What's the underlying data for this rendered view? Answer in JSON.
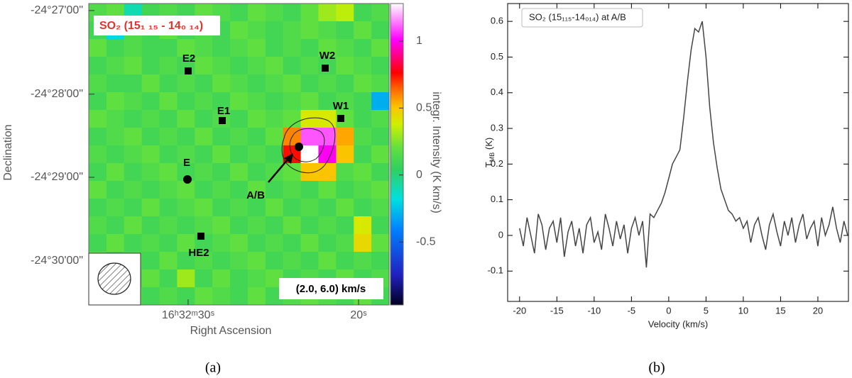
{
  "chart_data": [
    {
      "type": "heatmap",
      "title": "SO₂ (15₁ ₁₅ - 14₀ ₁₄)",
      "annotation": "(2.0, 6.0) km/s",
      "xlabel": "Right Ascension",
      "ylabel": "Declination",
      "xlim": [
        35.83,
        18.21
      ],
      "xticks": [
        {
          "value": 30,
          "label": "16ʰ32ᵐ30ˢ"
        },
        {
          "value": 20,
          "label": "20ˢ"
        }
      ],
      "ylim": [
        -24.4486,
        -24.5088
      ],
      "yticks": [
        {
          "value": -24.45,
          "label": "-24°27'00\""
        },
        {
          "value": -24.4667,
          "label": "-24°28'00\""
        },
        {
          "value": -24.4833,
          "label": "-24°29'00\""
        },
        {
          "value": -24.5,
          "label": "-24°30'00\""
        }
      ],
      "clim": [
        -0.97,
        1.28
      ],
      "cticks": [
        -0.5,
        0,
        0.5,
        1
      ],
      "colorbar_label": "integr. Intensity (K km/s)",
      "sources": [
        "E2",
        "W2",
        "E1",
        "W1",
        "E",
        "A/B",
        "HE2"
      ],
      "caption": "(a)",
      "values": [
        [
          0.15,
          0.2,
          -0.1,
          0.1,
          0.15,
          0.1,
          0.2,
          0.15,
          0.1,
          0.2,
          0.15,
          0.1,
          0.2,
          0.3,
          0.35,
          0.1,
          0.15
        ],
        [
          0.1,
          -0.2,
          0.15,
          0.1,
          0.2,
          0.1,
          0.15,
          0.1,
          0.2,
          0.15,
          0.1,
          0.15,
          0.2,
          0.15,
          0.1,
          0.2,
          0.1
        ],
        [
          0.2,
          0.1,
          0.15,
          0.1,
          0.1,
          0.2,
          0.15,
          0.1,
          0.15,
          0.2,
          0.1,
          0.15,
          0.1,
          0.2,
          0.15,
          0.1,
          0.2
        ],
        [
          0.1,
          0.15,
          0.2,
          0.1,
          0.15,
          0.1,
          0.2,
          0.15,
          0.1,
          0.15,
          0.2,
          0.1,
          0.15,
          0.1,
          0.2,
          0.15,
          0.1
        ],
        [
          0.15,
          0.1,
          0.1,
          0.2,
          0.1,
          0.15,
          0.1,
          0.2,
          0.15,
          0.1,
          0.15,
          0.2,
          0.1,
          0.15,
          0.1,
          0.2,
          0.15
        ],
        [
          0.1,
          0.2,
          0.15,
          0.1,
          0.2,
          0.1,
          0.15,
          0.1,
          0.2,
          0.15,
          0.1,
          0.15,
          0.2,
          0.1,
          0.15,
          0.1,
          -0.3
        ],
        [
          0.2,
          0.15,
          0.1,
          0.15,
          0.1,
          0.2,
          0.1,
          0.15,
          0.1,
          0.2,
          0.15,
          0.2,
          0.4,
          0.4,
          0.2,
          0.1,
          0.15
        ],
        [
          0.1,
          0.15,
          0.2,
          0.1,
          0.15,
          0.1,
          0.2,
          0.1,
          0.15,
          0.1,
          0.2,
          0.6,
          1.1,
          1.1,
          0.55,
          0.15,
          0.1
        ],
        [
          0.15,
          0.1,
          0.15,
          0.2,
          0.1,
          0.15,
          0.1,
          0.2,
          0.1,
          0.15,
          0.1,
          0.75,
          1.28,
          1.0,
          0.5,
          0.1,
          0.2
        ],
        [
          0.1,
          0.2,
          0.1,
          0.15,
          0.2,
          0.1,
          0.15,
          0.1,
          0.2,
          0.1,
          0.15,
          0.2,
          0.5,
          0.5,
          0.15,
          0.2,
          0.1
        ],
        [
          0.2,
          0.1,
          0.15,
          0.1,
          0.15,
          0.2,
          0.1,
          0.15,
          0.1,
          0.2,
          0.1,
          0.15,
          0.1,
          0.2,
          0.1,
          0.15,
          0.2
        ],
        [
          0.1,
          0.15,
          0.1,
          0.2,
          0.1,
          0.15,
          0.2,
          0.1,
          0.15,
          0.1,
          0.2,
          0.1,
          0.15,
          0.1,
          0.2,
          0.1,
          0.15
        ],
        [
          0.15,
          0.1,
          0.2,
          0.1,
          0.15,
          0.1,
          0.15,
          0.2,
          0.1,
          0.15,
          0.1,
          0.2,
          0.1,
          0.15,
          0.1,
          0.4,
          0.1
        ],
        [
          0.1,
          0.2,
          0.1,
          0.15,
          0.1,
          0.2,
          0.1,
          0.15,
          0.2,
          0.1,
          0.15,
          0.1,
          0.2,
          0.1,
          0.15,
          0.45,
          0.2
        ],
        [
          0.2,
          0.1,
          0.15,
          0.1,
          0.2,
          0.1,
          0.15,
          0.1,
          0.15,
          0.2,
          0.1,
          0.15,
          0.1,
          0.2,
          0.1,
          0.15,
          0.1
        ],
        [
          0.1,
          0.15,
          0.1,
          0.2,
          0.1,
          0.3,
          0.1,
          0.2,
          0.1,
          0.15,
          0.2,
          0.1,
          0.15,
          0.1,
          0.2,
          0.1,
          0.15
        ],
        [
          0.15,
          0.1,
          0.2,
          0.1,
          0.15,
          0.1,
          0.2,
          0.15,
          0.1,
          0.2,
          0.1,
          0.15,
          0.2,
          0.15,
          0.1,
          0.2,
          0.1
        ]
      ]
    },
    {
      "type": "line",
      "legend": "SO₂ (15₁₁₅-14₀₁₄) at A/B",
      "xlabel": "Velocity (km/s)",
      "ylabel": {
        "main": "T",
        "sub": "MB",
        "unit": " (K)"
      },
      "caption": "(b)",
      "color": "#444444",
      "xlim": [
        -21.6,
        24.1
      ],
      "ylim": [
        -0.185,
        0.65
      ],
      "xticks": [
        -20,
        -15,
        -10,
        -5,
        0,
        5,
        10,
        15,
        20
      ],
      "yticks": [
        -0.1,
        0.0,
        0.1,
        0.2,
        0.3,
        0.4,
        0.5,
        0.6
      ],
      "x": [
        -20,
        -19.5,
        -19,
        -18.5,
        -18,
        -17.5,
        -17,
        -16.5,
        -16,
        -15.5,
        -15,
        -14.5,
        -14,
        -13.5,
        -13,
        -12.5,
        -12,
        -11.5,
        -11,
        -10.5,
        -10,
        -9.5,
        -9,
        -8.5,
        -8,
        -7.5,
        -7,
        -6.5,
        -6,
        -5.5,
        -5,
        -4.5,
        -4,
        -3.5,
        -3,
        -2.5,
        -2,
        -1.5,
        -1,
        -0.5,
        0,
        0.5,
        1,
        1.5,
        2,
        2.5,
        3,
        3.5,
        4,
        4.5,
        5,
        5.5,
        6,
        6.5,
        7,
        7.5,
        8,
        8.5,
        9,
        9.5,
        10,
        10.5,
        11,
        11.5,
        12,
        12.5,
        13,
        13.5,
        14,
        14.5,
        15,
        15.5,
        16,
        16.5,
        17,
        17.5,
        18,
        18.5,
        19,
        19.5,
        20,
        20.5,
        21,
        21.5,
        22,
        22.5,
        23,
        23.5,
        24
      ],
      "values": [
        0.02,
        -0.03,
        0.05,
        0.0,
        -0.05,
        0.06,
        0.03,
        -0.04,
        0.02,
        0.04,
        -0.02,
        0.05,
        -0.06,
        0.01,
        0.04,
        -0.03,
        0.02,
        -0.05,
        0.03,
        0.05,
        -0.02,
        0.01,
        -0.04,
        0.06,
        0.02,
        -0.03,
        0.04,
        -0.01,
        0.03,
        -0.05,
        0.02,
        0.05,
        0.0,
        0.04,
        -0.09,
        0.06,
        0.05,
        0.07,
        0.09,
        0.12,
        0.16,
        0.2,
        0.22,
        0.24,
        0.33,
        0.43,
        0.52,
        0.58,
        0.57,
        0.6,
        0.5,
        0.36,
        0.26,
        0.19,
        0.13,
        0.1,
        0.07,
        0.06,
        0.04,
        0.05,
        0.02,
        0.04,
        -0.02,
        0.03,
        0.05,
        0.0,
        -0.04,
        0.03,
        0.06,
        0.01,
        -0.03,
        0.04,
        0.0,
        0.05,
        -0.02,
        0.03,
        0.06,
        -0.01,
        0.02,
        0.04,
        -0.03,
        0.05,
        0.0,
        0.03,
        0.08,
        0.02,
        -0.02,
        0.04,
        0.0
      ]
    }
  ]
}
